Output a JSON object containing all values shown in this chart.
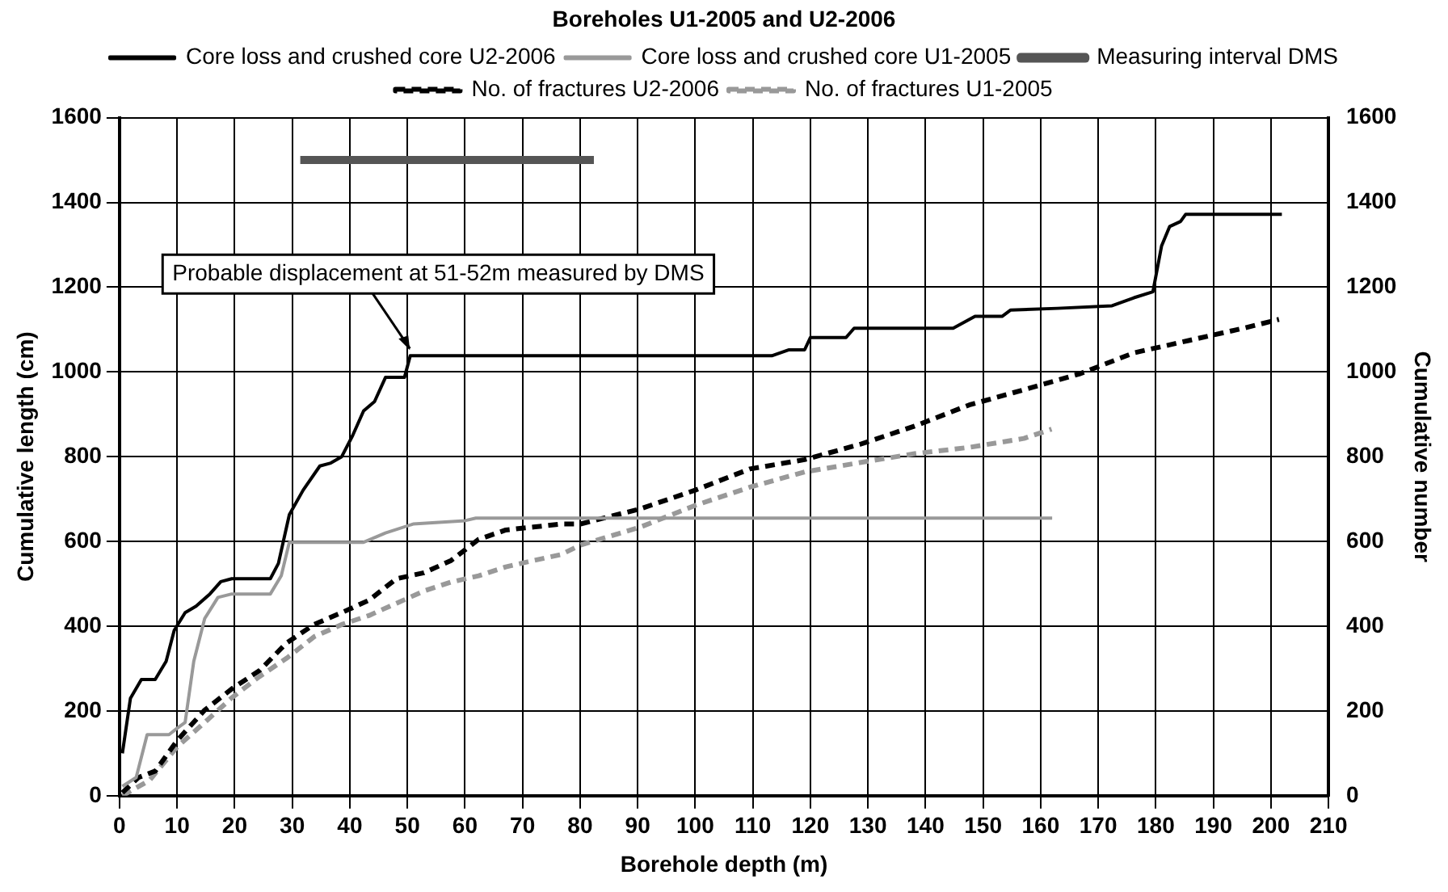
{
  "chart_data": {
    "type": "line",
    "title": "Boreholes U1-2005 and U2-2006",
    "xlabel": "Borehole depth (m)",
    "ylabel": "Cumulative length (cm)",
    "y2label": "Cumulative number",
    "xlim": [
      0,
      210
    ],
    "xticks": [
      0,
      10,
      20,
      30,
      40,
      50,
      60,
      70,
      80,
      90,
      100,
      110,
      120,
      130,
      140,
      150,
      160,
      170,
      180,
      190,
      200,
      210
    ],
    "ylim": [
      0,
      1600
    ],
    "yticks": [
      0,
      200,
      400,
      600,
      800,
      1000,
      1200,
      1400,
      1600
    ],
    "y2lim": [
      0,
      1600
    ],
    "y2ticks": [
      0,
      200,
      400,
      600,
      800,
      1000,
      1200,
      1400,
      1600
    ],
    "grid": true,
    "legend": "top",
    "marker": "none",
    "annotations": [
      {
        "text": "Probable displacement at 51-52m measured by DMS",
        "x": 51,
        "y": 1040
      }
    ],
    "series": [
      {
        "name": "Core loss and crushed core U2-2006",
        "color": "#000000",
        "line_style": "solid",
        "x": [
          0.5,
          1.9,
          3.8,
          6.2,
          8.1,
          9.5,
          11.4,
          13.3,
          15.7,
          17.6,
          19.5,
          26.2,
          27.6,
          29.5,
          31.9,
          34.8,
          36.7,
          38.6,
          40.5,
          42.4,
          44.3,
          46.2,
          49.5,
          50.5,
          113.3,
          116.2,
          119,
          120,
          126.2,
          127.6,
          144.8,
          148.6,
          153.3,
          154.8,
          162.9,
          172.4,
          176.2,
          179.5,
          181,
          182.4,
          184.3,
          185.2,
          201.9
        ],
        "values": [
          100,
          230,
          274,
          274,
          317,
          390,
          432,
          447,
          476,
          505,
          512,
          512,
          548,
          663,
          721,
          778,
          785,
          800,
          850,
          908,
          930,
          987,
          987,
          1038,
          1038,
          1052,
          1052,
          1081,
          1081,
          1103,
          1103,
          1131,
          1131,
          1146,
          1150,
          1156,
          1175,
          1189,
          1297,
          1343,
          1355,
          1372,
          1372
        ]
      },
      {
        "name": "Core loss and crushed core U1-2005",
        "color": "#999999",
        "line_style": "solid",
        "x": [
          0.5,
          2.9,
          4.8,
          8.6,
          10,
          11.4,
          12.9,
          14.8,
          17.1,
          19.5,
          26.2,
          28.1,
          29.5,
          42.4,
          46.2,
          51,
          60,
          61.9,
          162
        ],
        "values": [
          22,
          43,
          144,
          144,
          159,
          173,
          317,
          418,
          468,
          476,
          476,
          519,
          598,
          598,
          620,
          641,
          649,
          655,
          655
        ]
      },
      {
        "name": "Measuring interval DMS",
        "color": "#555555",
        "line_style": "solid",
        "x": [
          31.4,
          82.4
        ],
        "values": [
          1500,
          1500
        ]
      },
      {
        "name": "No. of fractures U2-2006",
        "color": "#000000",
        "line_style": "dashed",
        "axis": "y2",
        "x": [
          0.5,
          3.3,
          6.2,
          10,
          14.8,
          19.5,
          24.3,
          29,
          33.8,
          38.6,
          43.3,
          48.1,
          52.9,
          57.6,
          62.4,
          67.1,
          71.9,
          76.7,
          80,
          90.5,
          100,
          109.5,
          119,
          128.6,
          138.1,
          147.6,
          157.1,
          166.7,
          176.2,
          185.7,
          195.2,
          201.4
        ],
        "values": [
          7,
          43,
          58,
          130,
          202,
          252,
          295,
          360,
          404,
          432,
          461,
          512,
          526,
          555,
          605,
          627,
          634,
          641,
          641,
          677,
          721,
          771,
          793,
          829,
          872,
          922,
          958,
          995,
          1045,
          1074,
          1103,
          1124
        ]
      },
      {
        "name": "No. of fractures U1-2005",
        "color": "#999999",
        "line_style": "dashed",
        "axis": "y2",
        "x": [
          0.5,
          5.2,
          10,
          14.8,
          19.5,
          24.3,
          29,
          33.8,
          38.6,
          43.3,
          48.1,
          52.9,
          57.6,
          62.4,
          67.1,
          71.9,
          76.7,
          80,
          90.5,
          100,
          109.5,
          119,
          128.6,
          138.1,
          147.6,
          157.1,
          161.9
        ],
        "values": [
          0,
          36,
          115,
          173,
          231,
          281,
          324,
          375,
          404,
          425,
          454,
          483,
          504,
          519,
          540,
          555,
          569,
          591,
          634,
          685,
          728,
          764,
          786,
          807,
          822,
          843,
          865
        ]
      }
    ]
  }
}
